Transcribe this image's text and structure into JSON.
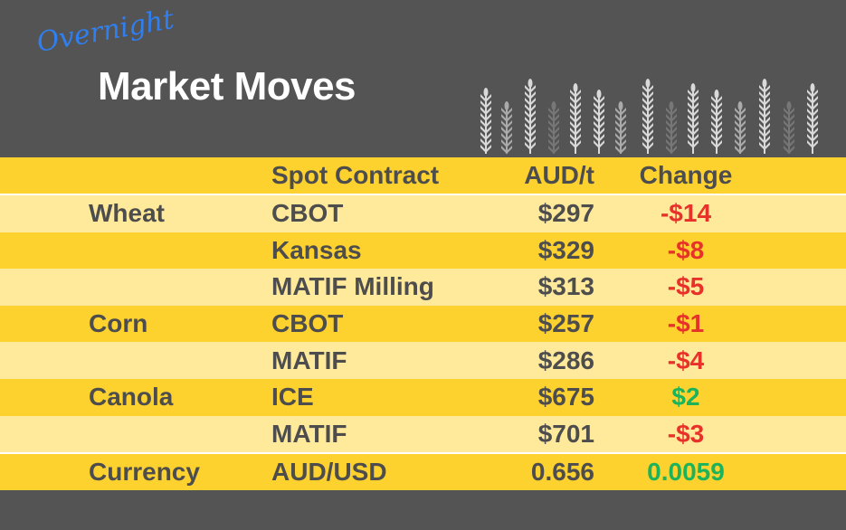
{
  "header": {
    "title": "Market Moves",
    "subtitle": "Overnight"
  },
  "colors": {
    "background": "#545454",
    "row_dark": "#FDD22F",
    "row_light": "#FFE99A",
    "negative": "#e8312a",
    "positive": "#1db35b",
    "text": "#4d4d4d"
  },
  "table": {
    "columns": [
      "",
      "Spot Contract",
      "AUD/t",
      "Change"
    ],
    "rows": [
      {
        "commodity": "Wheat",
        "contract": "CBOT",
        "price": "$297",
        "change": "-$14",
        "direction": "down"
      },
      {
        "commodity": "",
        "contract": "Kansas",
        "price": "$329",
        "change": "-$8",
        "direction": "down"
      },
      {
        "commodity": "",
        "contract": "MATIF Milling",
        "price": "$313",
        "change": "-$5",
        "direction": "down"
      },
      {
        "commodity": "Corn",
        "contract": "CBOT",
        "price": "$257",
        "change": "-$1",
        "direction": "down"
      },
      {
        "commodity": "",
        "contract": "MATIF",
        "price": "$286",
        "change": "-$4",
        "direction": "down"
      },
      {
        "commodity": "Canola",
        "contract": "ICE",
        "price": "$675",
        "change": "$2",
        "direction": "up"
      },
      {
        "commodity": "",
        "contract": "MATIF",
        "price": "$701",
        "change": "-$3",
        "direction": "down"
      }
    ],
    "currency": {
      "commodity": "Currency",
      "contract": "AUD/USD",
      "price": "0.656",
      "change": "0.0059",
      "direction": "up"
    }
  }
}
